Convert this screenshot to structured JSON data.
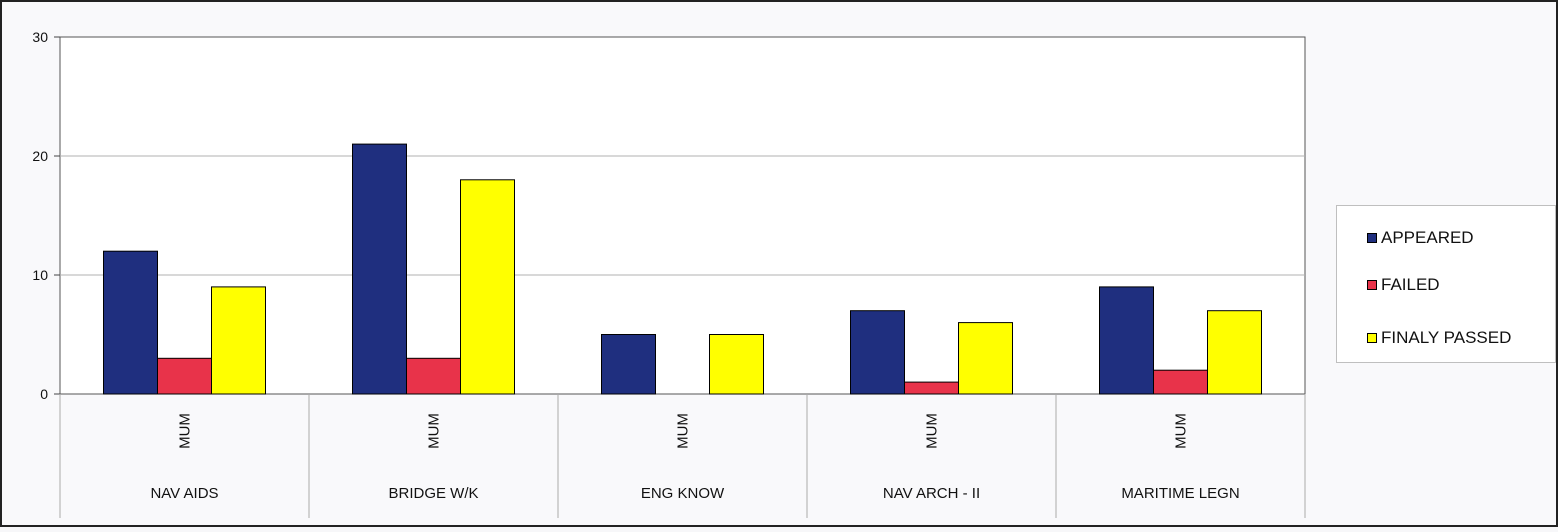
{
  "chart_data": {
    "type": "bar",
    "title": "",
    "xlabel": "",
    "ylabel": "",
    "ylim": [
      0,
      30
    ],
    "yticks": [
      "0",
      "10",
      "20",
      "30"
    ],
    "grid": true,
    "legend_position": "right",
    "categories": [
      "NAV AIDS",
      "BRIDGE W/K",
      "ENG KNOW",
      "NAV ARCH - II",
      "MARITIME LEGN"
    ],
    "sublabel": "MUM",
    "series": [
      {
        "name": "APPEARED",
        "color": "#1f2f7f",
        "values": [
          12,
          21,
          5,
          7,
          9
        ]
      },
      {
        "name": "FAILED",
        "color": "#e8334a",
        "values": [
          3,
          3,
          0,
          1,
          2
        ]
      },
      {
        "name": "FINALY PASSED",
        "color": "#ffff00",
        "values": [
          9,
          18,
          5,
          6,
          7
        ]
      }
    ]
  }
}
